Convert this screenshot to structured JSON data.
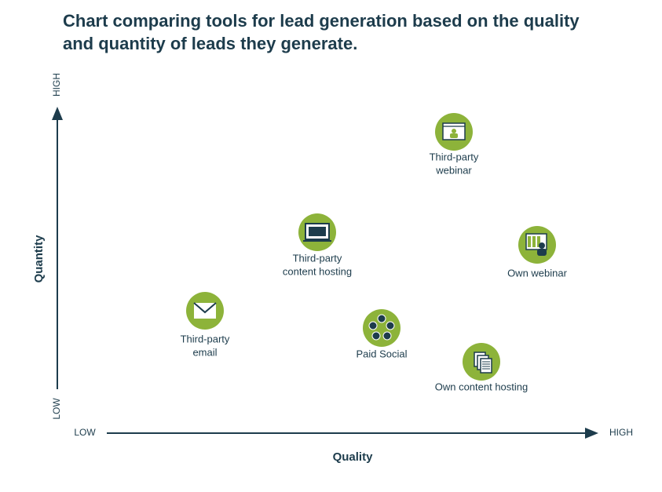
{
  "title": "Chart comparing tools for lead generation based on the quality and quantity of leads they generate.",
  "y_axis": {
    "label": "Quantity",
    "low": "LOW",
    "high": "HIGH"
  },
  "x_axis": {
    "label": "Quality",
    "low": "LOW",
    "high": "HIGH"
  },
  "nodes": [
    {
      "lines": [
        "Third-party",
        "webinar"
      ]
    },
    {
      "lines": [
        "Third-party",
        "content hosting"
      ]
    },
    {
      "lines": [
        "Own webinar"
      ]
    },
    {
      "lines": [
        "Third-party",
        "email"
      ]
    },
    {
      "lines": [
        "Paid Social"
      ]
    },
    {
      "lines": [
        "Own content hosting"
      ]
    }
  ]
}
